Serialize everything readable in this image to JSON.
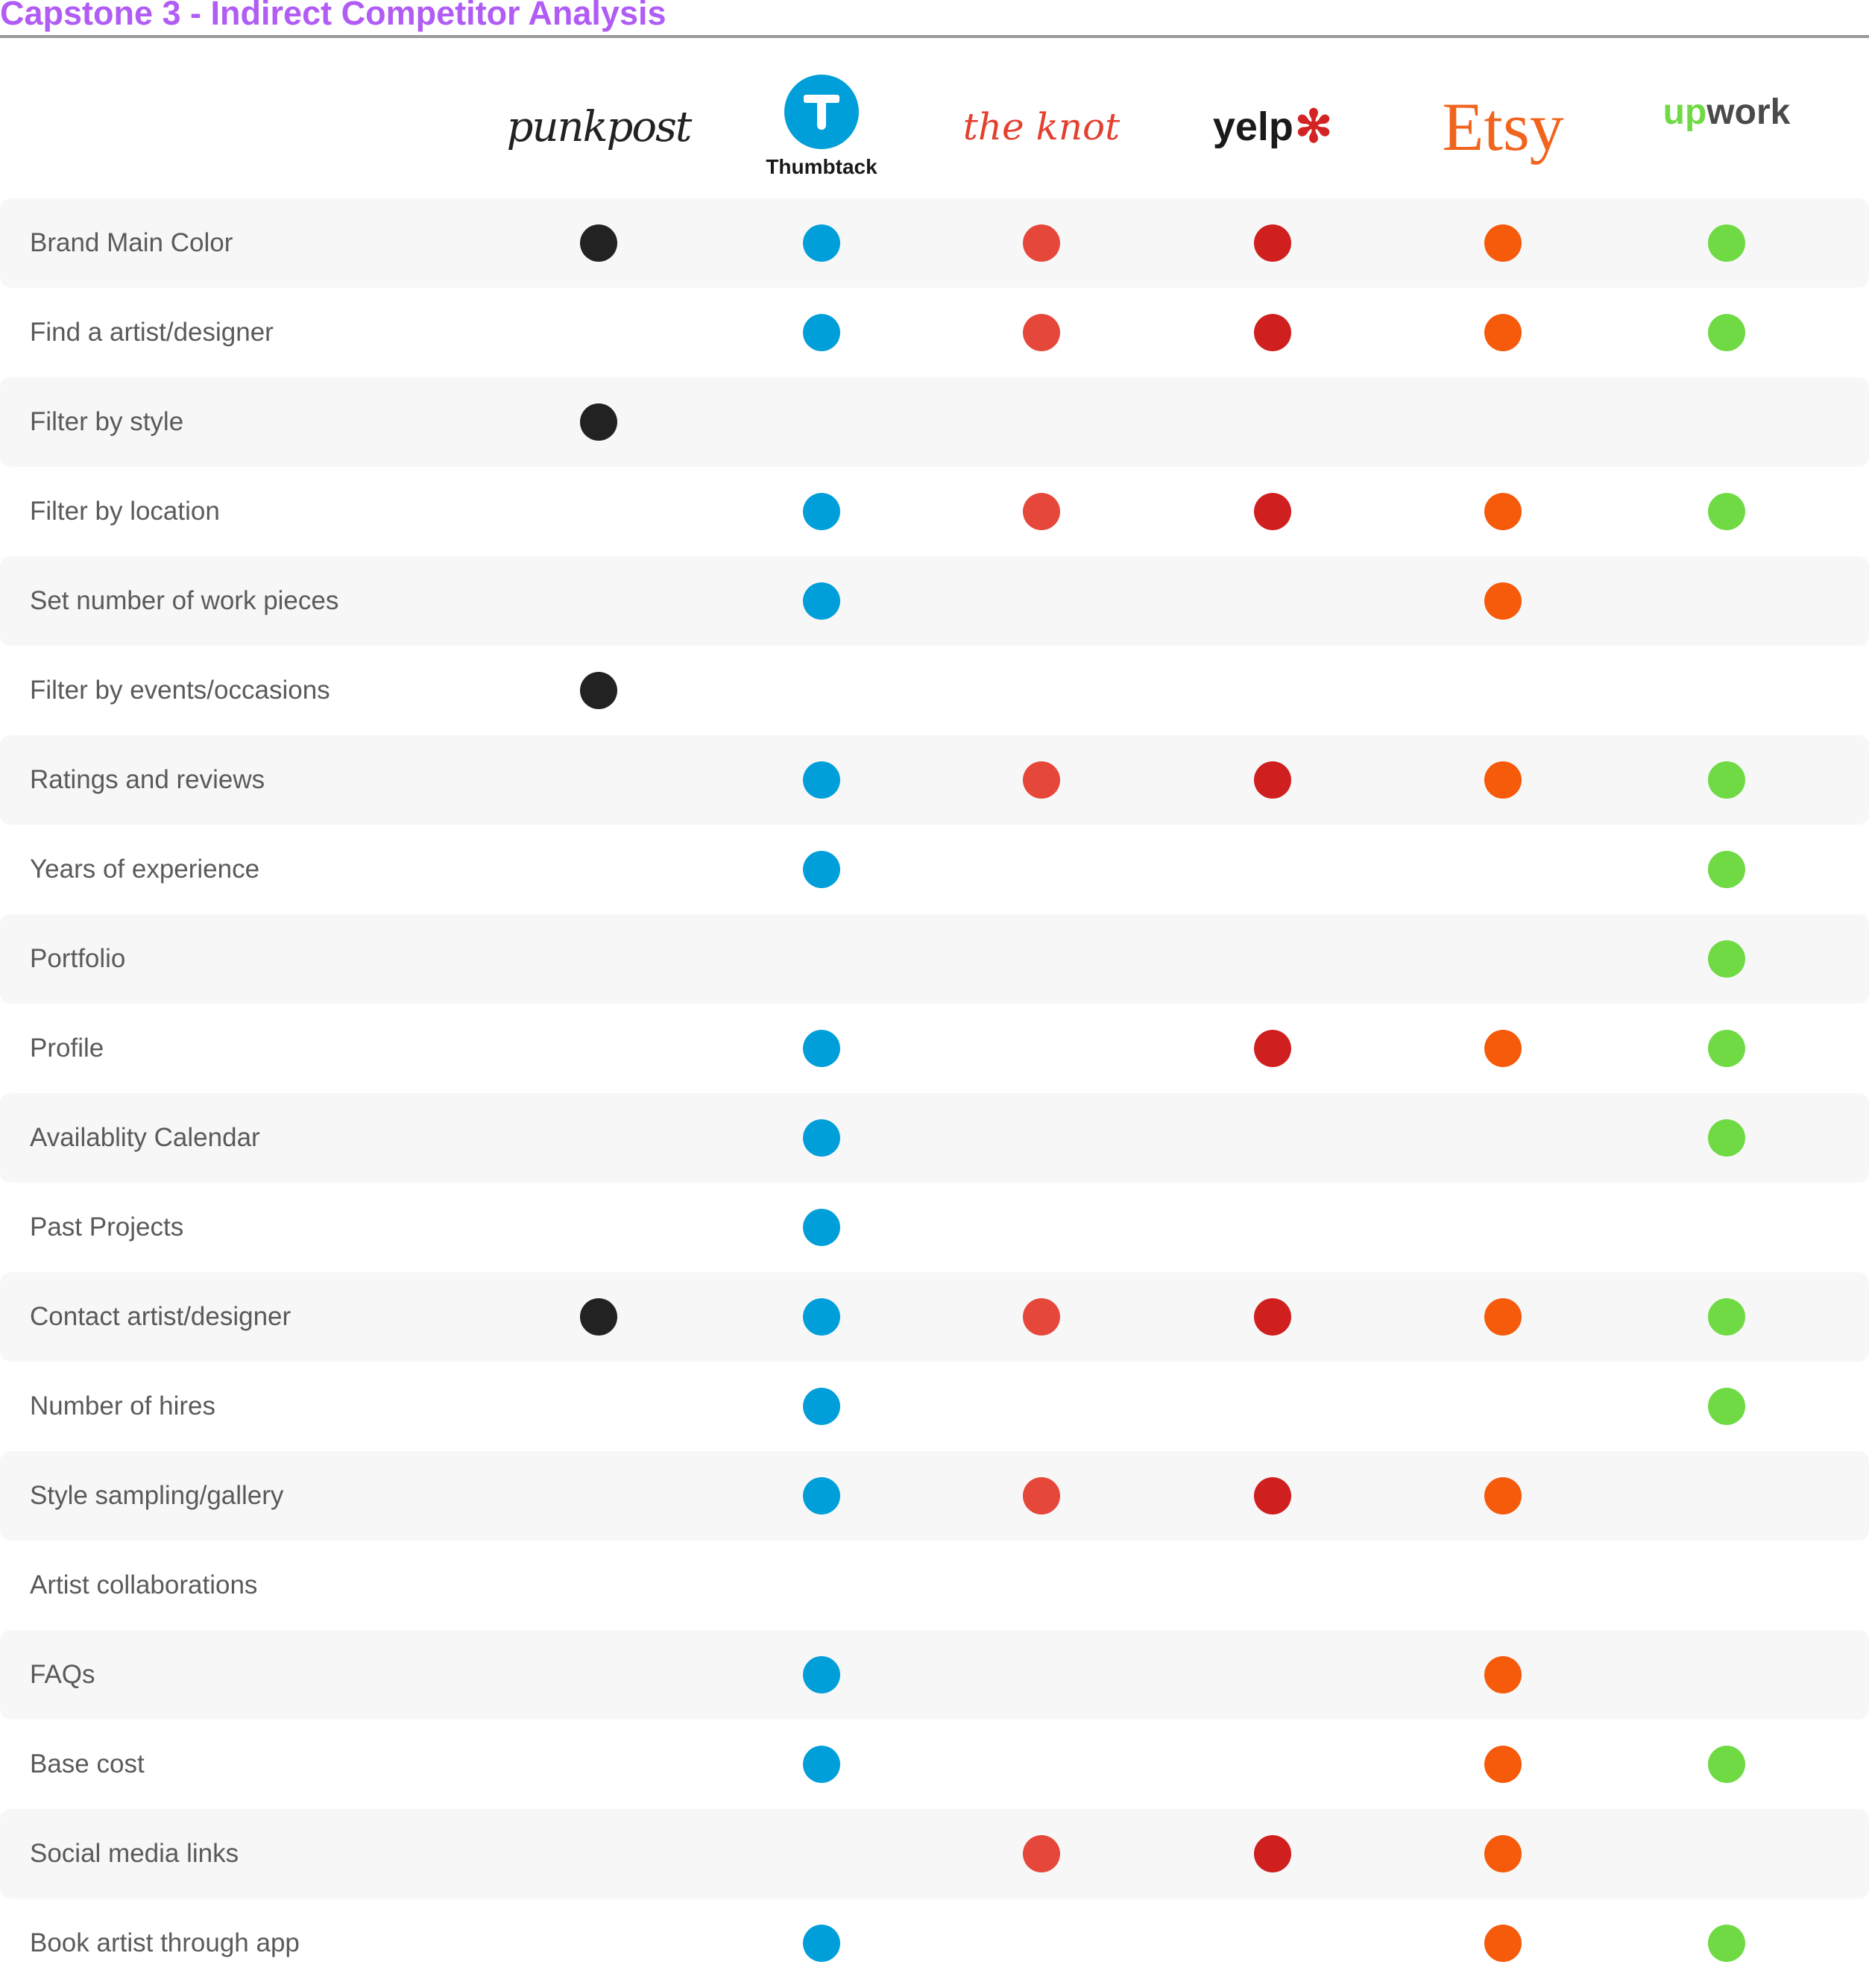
{
  "title": "Capstone 3 - Indirect Competitor Analysis",
  "competitors": [
    {
      "key": "punkpost",
      "logo_text": "punkpost",
      "color": "#222222"
    },
    {
      "key": "thumbtack",
      "logo_text": "Thumbtack",
      "color": "#009fd9"
    },
    {
      "key": "theknot",
      "logo_text": "the knot",
      "color": "#e5483a"
    },
    {
      "key": "yelp",
      "logo_text": "yelp",
      "color": "#d01f1f"
    },
    {
      "key": "etsy",
      "logo_text": "Etsy",
      "color": "#f65a0b"
    },
    {
      "key": "upwork",
      "logo_text_up": "up",
      "logo_text_rest": "work",
      "color": "#6fda44"
    }
  ],
  "features": [
    {
      "label": "Brand Main Color",
      "has": [
        true,
        true,
        true,
        true,
        true,
        true
      ]
    },
    {
      "label": "Find a artist/designer",
      "has": [
        false,
        true,
        true,
        true,
        true,
        true
      ]
    },
    {
      "label": "Filter by style",
      "has": [
        true,
        false,
        false,
        false,
        false,
        false
      ]
    },
    {
      "label": "Filter by location",
      "has": [
        false,
        true,
        true,
        true,
        true,
        true
      ]
    },
    {
      "label": "Set number of work pieces",
      "has": [
        false,
        true,
        false,
        false,
        true,
        false
      ]
    },
    {
      "label": "Filter by events/occasions",
      "has": [
        true,
        false,
        false,
        false,
        false,
        false
      ]
    },
    {
      "label": "Ratings and reviews",
      "has": [
        false,
        true,
        true,
        true,
        true,
        true
      ]
    },
    {
      "label": "Years of experience",
      "has": [
        false,
        true,
        false,
        false,
        false,
        true
      ]
    },
    {
      "label": "Portfolio",
      "has": [
        false,
        false,
        false,
        false,
        false,
        true
      ]
    },
    {
      "label": "Profile",
      "has": [
        false,
        true,
        false,
        true,
        true,
        true
      ]
    },
    {
      "label": "Availablity Calendar",
      "has": [
        false,
        true,
        false,
        false,
        false,
        true
      ]
    },
    {
      "label": "Past Projects",
      "has": [
        false,
        true,
        false,
        false,
        false,
        false
      ]
    },
    {
      "label": "Contact artist/designer",
      "has": [
        true,
        true,
        true,
        true,
        true,
        true
      ]
    },
    {
      "label": "Number of hires",
      "has": [
        false,
        true,
        false,
        false,
        false,
        true
      ]
    },
    {
      "label": "Style sampling/gallery",
      "has": [
        false,
        true,
        true,
        true,
        true,
        false
      ]
    },
    {
      "label": "Artist collaborations",
      "has": [
        false,
        false,
        false,
        false,
        false,
        false
      ]
    },
    {
      "label": "FAQs",
      "has": [
        false,
        true,
        false,
        false,
        true,
        false
      ]
    },
    {
      "label": "Base cost",
      "has": [
        false,
        true,
        false,
        false,
        true,
        true
      ]
    },
    {
      "label": "Social media links",
      "has": [
        false,
        false,
        true,
        true,
        true,
        false
      ]
    },
    {
      "label": "Book artist through app",
      "has": [
        false,
        true,
        false,
        false,
        true,
        true
      ]
    }
  ]
}
